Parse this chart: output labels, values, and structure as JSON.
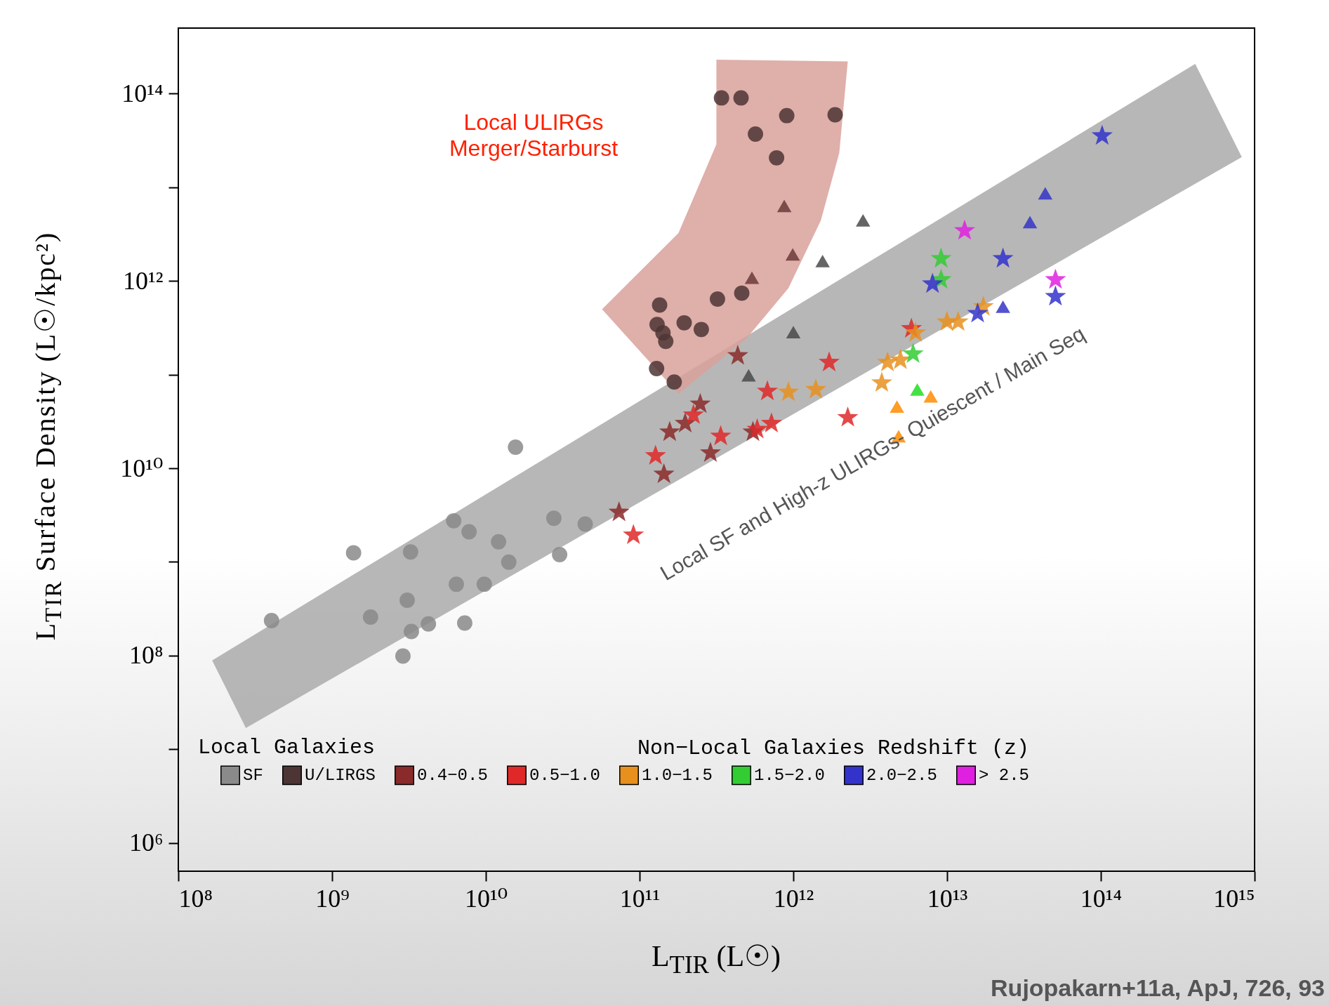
{
  "chart_data": {
    "type": "scatter",
    "xlabel": "L$_{TIR}$ (L☉)",
    "ylabel": "L$_{TIR}$ Surface Density (L☉/kpc²)",
    "log": "xy",
    "legend": "bottom",
    "legend_title": "Non−Local Galaxies Redshift (z)",
    "xlim": [
      100000000.0,
      1000000000000000.0
    ],
    "ylim": [
      500000.0,
      500000000000000.0
    ],
    "xticks": [
      {
        "value": 100000000.0,
        "label": "10⁸"
      },
      {
        "value": 1000000000.0,
        "label": "10⁹"
      },
      {
        "value": 10000000000.0,
        "label": "10¹⁰"
      },
      {
        "value": 100000000000.0,
        "label": "10¹¹"
      },
      {
        "value": 1000000000000.0,
        "label": "10¹²"
      },
      {
        "value": 10000000000000.0,
        "label": "10¹³"
      },
      {
        "value": 100000000000000.0,
        "label": "10¹⁴"
      },
      {
        "value": 1000000000000000.0,
        "label": "10¹⁵"
      }
    ],
    "yticks": [
      {
        "value": 1000000.0,
        "label": "10⁶"
      },
      {
        "value": 10000000.0,
        "label": null
      },
      {
        "value": 100000000.0,
        "label": "10⁸"
      },
      {
        "value": 1000000000.0,
        "label": null
      },
      {
        "value": 10000000000.0,
        "label": "10¹⁰"
      },
      {
        "value": 100000000000.0,
        "label": null
      },
      {
        "value": 1000000000000.0,
        "label": "10¹²"
      },
      {
        "value": 10000000000000.0,
        "label": null
      },
      {
        "value": 100000000000000.0,
        "label": "10¹⁴"
      }
    ],
    "annotations": [
      "Local ULIRGs\nMerger/Starburst",
      "Local SF and High-z ULIRGs- Quiescent / Main Seq",
      "Local Galaxies",
      "Rujopakarn+11a, ApJ, 726, 93"
    ],
    "series": [
      {
        "type": "area",
        "color": "#aaaaaa",
        "x": [
          166000000.0,
          411000000000000.0,
          826000000000000.0,
          275000000.0
        ],
        "values": [
          89000000.0,
          207000000000000.0,
          21000000000000.0,
          16900000.0
        ]
      },
      {
        "type": "area",
        "color": "#d9a19b",
        "x": [
          57000000000.0,
          179000000000.0,
          316000000000.0,
          316000000000.0,
          2260000000000.0,
          1990000000000.0,
          1510000000000.0,
          929000000000.0,
          493000000000.0,
          179000000000.0
        ],
        "values": [
          498000000000.0,
          3240000000000.0,
          28700000000000.0,
          230000000000000.0,
          220000000000000.0,
          23300000000000.0,
          4430000000000.0,
          838000000000.0,
          240000000000.0,
          62400000000.0
        ]
      },
      {
        "name": "SF",
        "color": "#8a8a8a",
        "marker": "circle",
        "x": [
          404000000.0,
          1380000000.0,
          1780000000.0,
          3240000000.0,
          3080000000.0,
          3280000000.0,
          2890000000.0,
          4230000000.0,
          6180000000.0,
          7780000000.0,
          6430000000.0,
          7290000000.0,
          9770000000.0,
          12100000000.0,
          14100000000.0,
          15600000000.0,
          27700000000.0,
          30200000000.0,
          44300000000.0
        ],
        "values": [
          237000000.0,
          1250000000.0,
          258000000.0,
          1280000000.0,
          390000000.0,
          181000000.0,
          99000000.0,
          218000000.0,
          2750000000.0,
          2100000000.0,
          579000000.0,
          223000000.0,
          579000000.0,
          1640000000.0,
          995000000.0,
          16800000000.0,
          2930000000.0,
          1200000000.0,
          2540000000.0
        ]
      },
      {
        "name": "U/LIRGS",
        "color": "#4d3535",
        "marker": "circle",
        "x": [
          341000000000.0,
          457000000000.0,
          906000000000.0,
          1870000000000.0,
          567000000000.0,
          778000000000.0,
          135000000000.0,
          321000000000.0,
          462000000000.0,
          130000000000.0,
          142000000000.0,
          148000000000.0,
          195000000000.0,
          252000000000.0,
          129000000000.0,
          168000000000.0
        ],
        "values": [
          90000000000000.0,
          90000000000000.0,
          58200000000000.0,
          59400000000000.0,
          36900000000000.0,
          20600000000000.0,
          553000000000.0,
          640000000000.0,
          740000000000.0,
          343000000000.0,
          279000000000.0,
          226000000000.0,
          357000000000.0,
          303000000000.0,
          116000000000.0,
          83400000000.0
        ]
      },
      {
        "color": "#6b3a3a",
        "marker": "triangle",
        "x": [
          873000000000.0,
          991000000000.0,
          538000000000.0
        ],
        "values": [
          6300000000000.0,
          1920000000000.0,
          1080000000000.0
        ]
      },
      {
        "color": "#4a4a4a",
        "marker": "triangle",
        "x": [
          2840000000000.0,
          1550000000000.0,
          1000000000000.0,
          512000000000.0
        ],
        "values": [
          4430000000000.0,
          1630000000000.0,
          284000000000.0,
          98400000000.0
        ]
      },
      {
        "name": "0.4−0.5",
        "color": "#8b2a2a",
        "marker": "star",
        "x": [
          73500000000.0,
          144000000000.0,
          157000000000.0,
          198000000000.0,
          248000000000.0,
          289000000000.0,
          435000000000.0,
          546000000000.0
        ],
        "values": [
          3390000000.0,
          8650000000.0,
          24400000000.0,
          30100000000.0,
          48500000000.0,
          14600000000.0,
          159000000000.0,
          24400000000.0
        ]
      },
      {
        "name": "0.5−1.0",
        "color": "#e02828",
        "marker": "star",
        "x": [
          91200000000.0,
          2260000000000.0,
          127000000000.0,
          224000000000.0,
          337000000000.0,
          582000000000.0,
          721000000000.0,
          678000000000.0,
          1710000000000.0,
          5860000000000.0
        ],
        "values": [
          1940000000.0,
          34800000000.0,
          13600000000.0,
          37100000000.0,
          22000000000.0,
          26000000000.0,
          30100000000.0,
          66400000000.0,
          135000000000.0,
          309000000000.0
        ]
      },
      {
        "name": "1.0−1.5",
        "color": "#e8901e",
        "marker": "star",
        "x": [
          929000000000.0,
          1400000000000.0,
          3760000000000.0,
          4100000000000.0,
          4970000000000.0,
          6240000000000.0,
          9980000000000.0,
          11800000000000.0,
          17200000000000.0
        ],
        "values": [
          65000000000.0,
          69200000000.0,
          81700000000.0,
          135000000000.0,
          143000000000.0,
          279000000000.0,
          365000000000.0,
          365000000000.0,
          531000000000.0
        ]
      },
      {
        "color": "#ff8c00",
        "marker": "triangle",
        "x": [
          4720000000000.0,
          4840000000000.0,
          7830000000000.0
        ],
        "values": [
          45600000000.0,
          22000000000.0,
          58500000000.0
        ]
      },
      {
        "name": "1.5−2.0",
        "color": "#33cc33",
        "marker": "star",
        "x": [
          9140000000000.0,
          9140000000000.0,
          6010000000000.0
        ],
        "values": [
          1730000000000.0,
          1030000000000.0,
          166000000000.0
        ]
      },
      {
        "color": "#22dd22",
        "marker": "triangle",
        "x": [
          6400000000000.0
        ],
        "values": [
          69200000000.0
        ]
      },
      {
        "name": "2.0−2.5",
        "color": "#3333cc",
        "marker": "star",
        "x": [
          102000000000000.0,
          23100000000000.0,
          8040000000000.0,
          15800000000000.0,
          50700000000000.0
        ],
        "values": [
          35400000000000.0,
          1730000000000.0,
          929000000000.0,
          449000000000.0,
          681000000000.0
        ]
      },
      {
        "color": "#3535c8",
        "marker": "triangle",
        "x": [
          43500000000000.0,
          34600000000000.0,
          23100000000000.0
        ],
        "values": [
          8610000000000.0,
          4250000000000.0,
          531000000000.0
        ]
      },
      {
        "name": "> 2.5",
        "color": "#e020e0",
        "marker": "star",
        "x": [
          13000000000000.0,
          50700000000000.0
        ],
        "values": [
          3440000000000.0,
          1030000000000.0
        ]
      }
    ]
  }
}
